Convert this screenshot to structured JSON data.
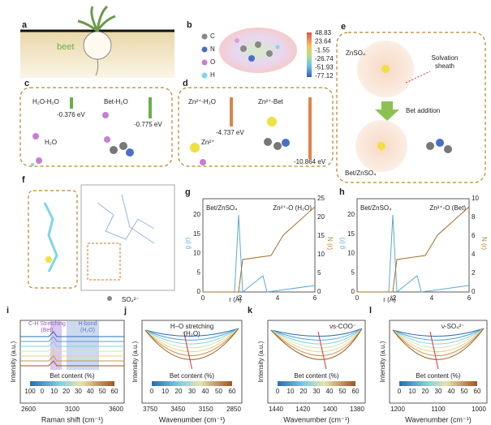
{
  "a": {
    "label": "a",
    "text": "beet"
  },
  "b": {
    "label": "b",
    "atoms": [
      "C",
      "N",
      "O",
      "H"
    ],
    "scale": [
      "48.83",
      "23.64",
      "-1.55",
      "-26.74",
      "-51.93",
      "-77.12"
    ]
  },
  "c": {
    "label": "c",
    "left": "H₂O-H₂O",
    "right": "Bet-H₂O",
    "e1": "-0.376 eV",
    "e2": "-0.775 eV",
    "mol": "H₂O"
  },
  "d": {
    "label": "d",
    "left": "Zn²⁺-H₂O",
    "right": "Zn²⁺-Bet",
    "e1": "-4.737 eV",
    "e2": "-10.864 eV",
    "ion": "Zn²⁺"
  },
  "e": {
    "label": "e",
    "salt": "ZnSO₄",
    "sheath": [
      "Solvation",
      "sheath"
    ],
    "step": "Bet addition",
    "result": "Bet/ZnSO₄"
  },
  "f": {
    "label": "f",
    "ion": "SO₄²⁻"
  },
  "g": {
    "label": "g",
    "system": "Bet/ZnSO₄",
    "pair": "Zn²⁺-O (H₂O)",
    "ylabel": "g (r)",
    "y2label": "N (r)",
    "xlabel": "r (Å)",
    "xticks": [
      "0",
      "2",
      "4",
      "6"
    ],
    "yticks": [
      "0",
      "5",
      "10",
      "15",
      "20"
    ],
    "y2ticks": [
      "0",
      "5",
      "10",
      "15",
      "20",
      "25"
    ]
  },
  "h": {
    "label": "h",
    "system": "Bet/ZnSO₄",
    "pair": "Zn²⁺-O (Bet)",
    "ylabel": "g (r)",
    "y2label": "N (r)",
    "xlabel": "r (Å)",
    "xticks": [
      "0",
      "2",
      "4",
      "6"
    ],
    "yticks": [
      "0",
      "5",
      "10",
      "15",
      "20"
    ],
    "y2ticks": [
      "0",
      "2",
      "4",
      "6",
      "8",
      "10"
    ]
  },
  "i": {
    "label": "i",
    "peak1": [
      "C-H Stretching",
      "(Bet)"
    ],
    "peak2": [
      "H-bond",
      "(H₂O)"
    ],
    "ylabel": "Intensity (a.u.)",
    "xlabel": "Raman shift (cm⁻¹)",
    "xticks": [
      "2600",
      "3100",
      "3600"
    ],
    "legend": "Bet content (%)",
    "content": [
      "100",
      "0",
      "10",
      "20",
      "30",
      "40",
      "50",
      "60"
    ]
  },
  "j": {
    "label": "j",
    "note": [
      "H–O stretching",
      "(H₂O)"
    ],
    "ylabel": "Intensity (a.u.)",
    "xlabel": "Wavenumber (cm⁻¹)",
    "xticks": [
      "3750",
      "3450",
      "3150",
      "2850"
    ],
    "legend": "Bet content (%)",
    "content": [
      "0",
      "10",
      "20",
      "30",
      "40",
      "50",
      "60"
    ]
  },
  "k": {
    "label": "k",
    "note": "νs-COO⁻",
    "ylabel": "Intensity (a.u.)",
    "xlabel": "Wavenumber (cm⁻¹)",
    "xticks": [
      "1440",
      "1420",
      "1400",
      "1380"
    ],
    "legend": "Bet content (%)",
    "content": [
      "0",
      "10",
      "20",
      "30",
      "40",
      "50",
      "60"
    ]
  },
  "l": {
    "label": "l",
    "note": "ν-SO₄²⁻",
    "ylabel": "Intensity (a.u.)",
    "xlabel": "Wavenumber (cm⁻¹)",
    "xticks": [
      "1200",
      "1100",
      "1000"
    ],
    "legend": "Bet content (%)",
    "content": [
      "0",
      "10",
      "20",
      "30",
      "40",
      "50",
      "60"
    ]
  }
}
